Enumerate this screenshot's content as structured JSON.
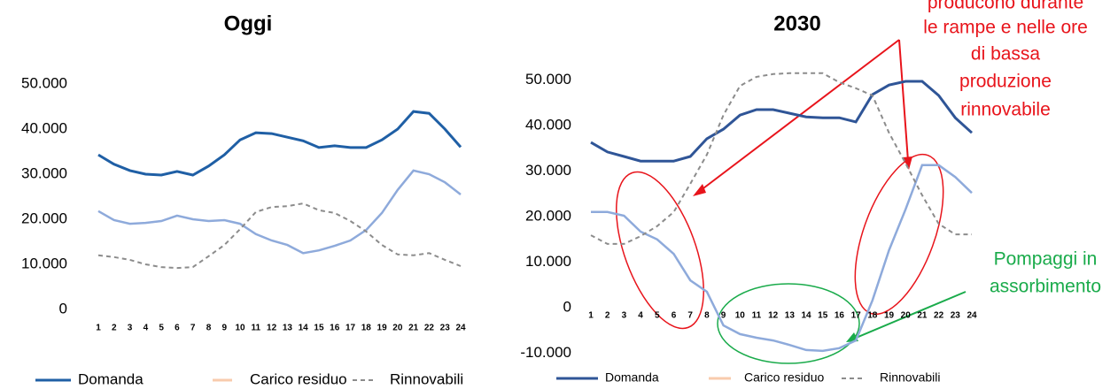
{
  "chart_data": [
    {
      "type": "line",
      "title": "Oggi",
      "categories": [
        "1",
        "2",
        "3",
        "4",
        "5",
        "6",
        "7",
        "8",
        "9",
        "10",
        "11",
        "12",
        "13",
        "14",
        "15",
        "16",
        "17",
        "18",
        "19",
        "20",
        "21",
        "22",
        "23",
        "24"
      ],
      "ylim": [
        0,
        55000
      ],
      "yticks": [
        {
          "value": 0,
          "label": "0"
        },
        {
          "value": 10000,
          "label": "10.000"
        },
        {
          "value": 20000,
          "label": "20.000"
        },
        {
          "value": 30000,
          "label": "30.000"
        },
        {
          "value": 40000,
          "label": "40.000"
        },
        {
          "value": 50000,
          "label": "50.000"
        }
      ],
      "series": [
        {
          "name": "Domanda",
          "color": "#1f5fa5",
          "dash": false,
          "values": [
            34300,
            32200,
            30800,
            30000,
            29800,
            30600,
            29800,
            31800,
            34300,
            37600,
            39200,
            39000,
            38200,
            37400,
            35900,
            36300,
            35900,
            35900,
            37600,
            40000,
            43900,
            43500,
            40000,
            36000
          ]
        },
        {
          "name": "Carico residuo",
          "color": "#8eaadb",
          "legend_color": "#f8cbad",
          "dash": false,
          "values": [
            21800,
            19800,
            19000,
            19200,
            19600,
            20800,
            20000,
            19600,
            19800,
            19000,
            16700,
            15300,
            14300,
            12500,
            13100,
            14100,
            15300,
            17600,
            21400,
            26500,
            30800,
            30000,
            28200,
            25500
          ]
        },
        {
          "name": "Rinnovabili",
          "color": "#8c8c8c",
          "dash": true,
          "values": [
            12000,
            11600,
            11000,
            10000,
            9400,
            9200,
            9400,
            11800,
            14300,
            17800,
            21600,
            22700,
            22900,
            23500,
            22000,
            21400,
            19600,
            17300,
            14300,
            12200,
            12000,
            12500,
            11000,
            9600
          ]
        }
      ]
    },
    {
      "type": "line",
      "title": "2030",
      "categories": [
        "1",
        "2",
        "3",
        "4",
        "5",
        "6",
        "7",
        "8",
        "9",
        "10",
        "11",
        "12",
        "13",
        "14",
        "15",
        "16",
        "17",
        "18",
        "19",
        "20",
        "21",
        "22",
        "23",
        "24"
      ],
      "ylim": [
        -10000,
        55000
      ],
      "yticks": [
        {
          "value": -10000,
          "label": "-10.000"
        },
        {
          "value": 0,
          "label": "0"
        },
        {
          "value": 10000,
          "label": "10.000"
        },
        {
          "value": 20000,
          "label": "20.000"
        },
        {
          "value": 30000,
          "label": "30.000"
        },
        {
          "value": 40000,
          "label": "40.000"
        },
        {
          "value": 50000,
          "label": "50.000"
        }
      ],
      "series": [
        {
          "name": "Domanda",
          "color": "#2f5597",
          "dash": false,
          "values": [
            36300,
            34200,
            33200,
            32200,
            32200,
            32200,
            33200,
            37100,
            39200,
            42300,
            43500,
            43500,
            42700,
            41900,
            41700,
            41700,
            40800,
            46800,
            48900,
            49700,
            49700,
            46600,
            41700,
            38400
          ]
        },
        {
          "name": "Carico residuo",
          "color": "#8eaadb",
          "legend_color": "#f8cbad",
          "dash": false,
          "values": [
            21000,
            21000,
            20200,
            16700,
            15000,
            11800,
            6000,
            3500,
            -3900,
            -5800,
            -6600,
            -7200,
            -8200,
            -9300,
            -9500,
            -8900,
            -7200,
            1600,
            12600,
            21600,
            31300,
            31300,
            28700,
            25200
          ]
        },
        {
          "name": "Rinnovabili",
          "color": "#8c8c8c",
          "dash": true,
          "values": [
            15900,
            14000,
            14000,
            15700,
            17900,
            21000,
            27200,
            33600,
            42300,
            48700,
            50700,
            51300,
            51500,
            51500,
            51500,
            49500,
            48200,
            46600,
            38400,
            31700,
            24700,
            18400,
            16100,
            16100
          ]
        }
      ]
    }
  ],
  "annotations": {
    "ramps": [
      "producono durante",
      "le rampe e nelle ore",
      "di bassa",
      "produzione",
      "rinnovabile"
    ],
    "pumping": [
      "Pompaggi in",
      "assorbimento"
    ]
  }
}
